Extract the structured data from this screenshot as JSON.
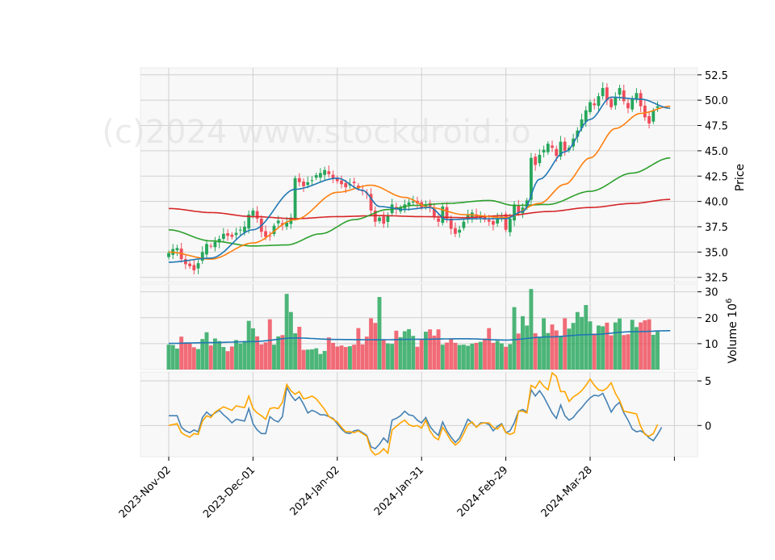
{
  "chart_data": {
    "type": "candlestick",
    "watermark": "(c)2024 www.stockdroid.io",
    "price_axis": {
      "label": "Price",
      "ylim": [
        32.0,
        53.2
      ],
      "ticks": [
        "32.5",
        "35.0",
        "37.5",
        "40.0",
        "42.5",
        "45.0",
        "47.5",
        "50.0",
        "52.5"
      ]
    },
    "volume_axis": {
      "label": "Volume  10",
      "exponent": "6",
      "ylim": [
        0,
        33
      ],
      "ticks": [
        "10",
        "20",
        "30"
      ]
    },
    "oscillator_axis": {
      "ylim": [
        -3.5,
        6.0
      ],
      "ticks": [
        "0",
        "5"
      ]
    },
    "x_ticks": [
      "2023-Nov-02",
      "2023-Dec-01",
      "2024-Jan-02",
      "2024-Jan-31",
      "2024-Feb-29",
      "2024-Mar-28"
    ],
    "x_tick_index": [
      0,
      20,
      40,
      60,
      80,
      100
    ],
    "grid": true,
    "colors": {
      "up": "#26a65b",
      "down": "#ef4c5a",
      "ma_fast": "#1f77b4",
      "ma_mid": "#ff7f0e",
      "ma_slow": "#2ca02c",
      "ma_long": "#d62728",
      "vol_ma": "#1f77b4",
      "osc_a": "#4682b4",
      "osc_b": "#ffa500",
      "panel_bg": "#f8f8f8",
      "grid": "#d0d0d0"
    },
    "price_close": [
      34.9,
      35.3,
      35.4,
      34.3,
      33.8,
      33.6,
      33.2,
      33.9,
      35.0,
      35.8,
      35.6,
      36.0,
      36.3,
      36.8,
      36.6,
      36.5,
      36.9,
      37.2,
      37.5,
      38.7,
      39.1,
      38.3,
      37.0,
      36.5,
      36.6,
      37.6,
      38.1,
      37.7,
      37.9,
      38.4,
      42.3,
      41.9,
      41.5,
      41.9,
      42.1,
      42.6,
      42.8,
      43.1,
      42.7,
      42.3,
      42.0,
      41.7,
      41.4,
      41.7,
      41.8,
      41.3,
      41.0,
      40.8,
      39.1,
      38.0,
      38.4,
      37.8,
      38.6,
      39.7,
      39.2,
      39.4,
      39.7,
      39.9,
      40.0,
      39.8,
      39.4,
      39.6,
      39.5,
      38.5,
      38.0,
      39.5,
      38.3,
      37.3,
      36.8,
      37.2,
      38.0,
      38.7,
      38.9,
      38.5,
      38.6,
      38.2,
      38.0,
      37.7,
      38.3,
      38.5,
      37.2,
      38.3,
      39.7,
      38.9,
      39.4,
      40.1,
      44.3,
      43.6,
      44.6,
      45.1,
      45.7,
      45.3,
      44.5,
      45.9,
      45.0,
      45.3,
      46.2,
      47.0,
      48.1,
      49.0,
      49.8,
      49.5,
      50.4,
      51.2,
      50.0,
      49.3,
      50.3,
      51.2,
      49.9,
      49.2,
      50.2,
      50.7,
      49.4,
      48.3,
      47.7,
      49.0,
      49.4
    ],
    "volume": [
      9.6,
      9.5,
      8.1,
      12.7,
      10.5,
      10.2,
      8.6,
      7.9,
      11.8,
      14.4,
      9.3,
      12.0,
      11.0,
      8.7,
      7.1,
      8.9,
      11.4,
      10.1,
      11.0,
      18.8,
      15.9,
      12.8,
      9.7,
      10.5,
      19.4,
      9.6,
      12.8,
      13.3,
      29.2,
      22.2,
      14.0,
      16.5,
      7.6,
      7.7,
      7.8,
      8.2,
      6.0,
      7.2,
      12.4,
      10.3,
      8.9,
      9.3,
      8.7,
      9.0,
      9.6,
      16.0,
      9.7,
      12.7,
      19.8,
      18.0,
      28.0,
      11.7,
      10.1,
      9.9,
      15.0,
      12.5,
      14.8,
      15.6,
      13.0,
      8.8,
      11.5,
      14.6,
      15.5,
      13.1,
      15.5,
      9.6,
      10.4,
      12.0,
      10.3,
      9.5,
      9.6,
      9.2,
      10.0,
      10.3,
      10.7,
      12.0,
      16.0,
      10.3,
      11.1,
      10.1,
      8.8,
      9.8,
      24.1,
      13.9,
      20.6,
      17.0,
      31.1,
      14.0,
      12.4,
      19.8,
      14.1,
      17.4,
      15.1,
      12.6,
      19.8,
      15.8,
      18.0,
      22.2,
      20.3,
      24.9,
      18.6,
      13.9,
      17.0,
      16.7,
      18.1,
      13.2,
      18.2,
      19.7,
      13.3,
      13.6,
      19.2,
      16.4,
      18.2,
      19.0,
      19.4,
      13.4,
      14.6
    ],
    "osc_a": [
      1.1,
      1.1,
      1.1,
      -0.2,
      -0.6,
      -0.8,
      -0.5,
      -0.7,
      0.9,
      1.5,
      1.1,
      1.4,
      1.7,
      1.2,
      0.8,
      0.3,
      0.7,
      0.6,
      0.5,
      1.9,
      0.2,
      -0.5,
      -0.9,
      -0.9,
      1.0,
      0.6,
      0.4,
      1.0,
      4.3,
      3.4,
      2.8,
      3.2,
      2.4,
      1.4,
      1.7,
      1.5,
      1.2,
      1.2,
      1.0,
      0.8,
      0.2,
      -0.4,
      -0.8,
      -0.9,
      -0.6,
      -0.5,
      -0.8,
      -1.1,
      -2.4,
      -2.6,
      -2.1,
      -1.4,
      -1.9,
      0.6,
      0.8,
      1.1,
      1.6,
      1.2,
      1.1,
      0.6,
      0.3,
      0.9,
      -0.1,
      -0.7,
      -1.1,
      0.4,
      -0.6,
      -1.3,
      -1.9,
      -1.4,
      -0.4,
      0.7,
      0.3,
      -0.2,
      0.3,
      0.3,
      0.1,
      -0.6,
      -0.1,
      0.2,
      -0.8,
      -0.6,
      0.3,
      1.6,
      1.8,
      1.5,
      4.0,
      3.3,
      3.9,
      3.2,
      2.3,
      1.4,
      0.8,
      2.3,
      1.1,
      0.6,
      0.9,
      1.5,
      2.0,
      2.6,
      3.1,
      3.4,
      3.3,
      3.6,
      2.6,
      1.5,
      2.2,
      2.6,
      1.4,
      0.6,
      -0.4,
      -0.7,
      -0.6,
      -0.9,
      -1.4,
      -1.7,
      -1.0,
      -0.2
    ],
    "osc_b": [
      0.0,
      0.1,
      0.2,
      -0.8,
      -1.1,
      -1.3,
      -0.9,
      -1.0,
      0.5,
      1.1,
      0.9,
      1.5,
      1.8,
      2.1,
      1.9,
      1.7,
      2.2,
      2.1,
      2.0,
      3.3,
      1.9,
      1.4,
      1.1,
      0.7,
      1.9,
      2.0,
      1.9,
      2.6,
      4.6,
      3.9,
      3.5,
      3.8,
      3.0,
      3.1,
      3.3,
      3.0,
      2.4,
      1.8,
      1.0,
      0.7,
      0.4,
      -0.2,
      -0.7,
      -0.7,
      -0.8,
      -0.6,
      -0.9,
      -1.2,
      -2.8,
      -3.3,
      -3.1,
      -2.6,
      -3.1,
      -0.5,
      -0.1,
      0.3,
      0.6,
      0.1,
      -0.1,
      0.0,
      -0.3,
      0.6,
      -0.6,
      -1.3,
      -1.6,
      -0.2,
      -0.9,
      -1.7,
      -2.2,
      -1.8,
      -0.9,
      0.1,
      0.4,
      -0.2,
      0.2,
      0.3,
      0.3,
      -0.2,
      -0.4,
      0.1,
      -0.8,
      -1.0,
      -0.8,
      1.6,
      1.6,
      1.4,
      4.5,
      4.2,
      5.0,
      4.4,
      4.0,
      5.9,
      5.5,
      3.8,
      3.8,
      2.7,
      3.2,
      3.5,
      3.9,
      4.5,
      5.2,
      4.5,
      4.0,
      3.9,
      4.2,
      4.8,
      3.6,
      2.8,
      1.6,
      1.5,
      1.4,
      1.3,
      -0.1,
      -1.0,
      -1.2,
      -0.9,
      0.1
    ],
    "ma_fast_anchor": [
      [
        0,
        34.0
      ],
      [
        10,
        34.4
      ],
      [
        20,
        37.2
      ],
      [
        30,
        41.2
      ],
      [
        40,
        42.3
      ],
      [
        46,
        41.1
      ],
      [
        50,
        39.5
      ],
      [
        56,
        39.2
      ],
      [
        62,
        39.4
      ],
      [
        66,
        38.2
      ],
      [
        74,
        38.3
      ],
      [
        80,
        38.3
      ],
      [
        84,
        39.0
      ],
      [
        88,
        42.2
      ],
      [
        94,
        44.9
      ],
      [
        100,
        48.1
      ],
      [
        105,
        50.3
      ],
      [
        112,
        50.1
      ],
      [
        119,
        49.2
      ]
    ],
    "ma_mid_anchor": [
      [
        0,
        35.0
      ],
      [
        10,
        34.3
      ],
      [
        20,
        35.9
      ],
      [
        30,
        38.2
      ],
      [
        40,
        40.9
      ],
      [
        48,
        41.6
      ],
      [
        56,
        40.4
      ],
      [
        62,
        39.4
      ],
      [
        70,
        38.7
      ],
      [
        80,
        38.4
      ],
      [
        88,
        39.8
      ],
      [
        94,
        41.7
      ],
      [
        100,
        44.3
      ],
      [
        106,
        47.2
      ],
      [
        112,
        48.7
      ],
      [
        119,
        49.4
      ]
    ],
    "ma_slow_anchor": [
      [
        0,
        37.2
      ],
      [
        10,
        36.1
      ],
      [
        20,
        35.6
      ],
      [
        28,
        35.7
      ],
      [
        36,
        36.8
      ],
      [
        44,
        38.2
      ],
      [
        52,
        39.2
      ],
      [
        58,
        39.6
      ],
      [
        66,
        39.8
      ],
      [
        76,
        40.1
      ],
      [
        82,
        39.6
      ],
      [
        90,
        39.7
      ],
      [
        100,
        41.0
      ],
      [
        110,
        42.8
      ],
      [
        119,
        44.3
      ]
    ],
    "ma_long_anchor": [
      [
        0,
        39.3
      ],
      [
        10,
        38.9
      ],
      [
        20,
        38.5
      ],
      [
        30,
        38.3
      ],
      [
        40,
        38.5
      ],
      [
        50,
        38.6
      ],
      [
        60,
        38.5
      ],
      [
        70,
        38.4
      ],
      [
        80,
        38.6
      ],
      [
        90,
        39.0
      ],
      [
        100,
        39.4
      ],
      [
        110,
        39.8
      ],
      [
        119,
        40.2
      ]
    ],
    "vol_ma_anchor": [
      [
        0,
        10.1
      ],
      [
        10,
        10.4
      ],
      [
        20,
        10.8
      ],
      [
        30,
        12.2
      ],
      [
        40,
        11.6
      ],
      [
        50,
        11.5
      ],
      [
        60,
        11.7
      ],
      [
        70,
        11.9
      ],
      [
        80,
        11.4
      ],
      [
        90,
        12.6
      ],
      [
        100,
        13.5
      ],
      [
        110,
        14.6
      ],
      [
        119,
        15.0
      ]
    ]
  }
}
